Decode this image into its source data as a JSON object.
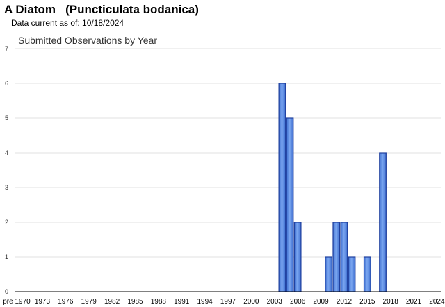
{
  "header": {
    "title": "A Diatom   (Puncticulata bodanica)",
    "data_current": "Data current as of: 10/18/2024"
  },
  "chart_data": {
    "type": "bar",
    "title": "Submitted Observations by Year",
    "xlabel": "",
    "ylabel": "",
    "ylim": [
      0,
      7
    ],
    "yticks": [
      0,
      1,
      2,
      3,
      4,
      5,
      6,
      7
    ],
    "x_ticks": [
      "pre 1970",
      "1973",
      "1976",
      "1979",
      "1982",
      "1985",
      "1988",
      "1991",
      "1994",
      "1997",
      "2000",
      "2003",
      "2006",
      "2009",
      "2012",
      "2015",
      "2018",
      "2021",
      "2024"
    ],
    "x_domain": [
      1970,
      2024
    ],
    "categories": [
      "2004",
      "2005",
      "2006",
      "2010",
      "2011",
      "2012",
      "2013",
      "2015",
      "2017"
    ],
    "values": [
      6,
      5,
      2,
      1,
      2,
      2,
      1,
      1,
      4
    ],
    "grid": true,
    "colors": {
      "bar_fill": "#5b8ee6",
      "bar_stroke": "#1f3f9e",
      "grid": "#e0e0e0",
      "axis": "#000000"
    }
  }
}
